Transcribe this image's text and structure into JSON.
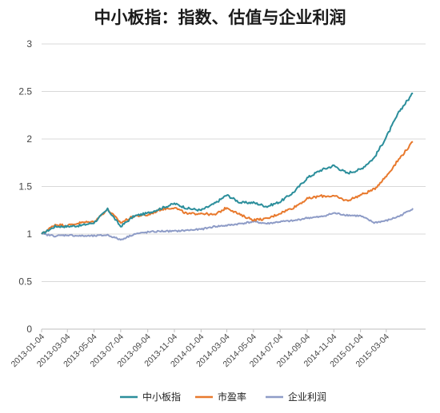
{
  "chart_data": {
    "type": "line",
    "title": "中小板指：指数、估值与企业利润",
    "xlabel": "",
    "ylabel": "",
    "ylim": [
      0,
      3
    ],
    "yticks": [
      "0",
      "0.5",
      "1",
      "1.5",
      "2",
      "2.5",
      "3"
    ],
    "xticks": [
      "2013-01-04",
      "2013-03-04",
      "2013-05-04",
      "2013-07-04",
      "2013-09-04",
      "2013-11-04",
      "2014-01-04",
      "2014-03-04",
      "2014-05-04",
      "2014-07-04",
      "2014-09-04",
      "2014-11-04",
      "2015-01-04",
      "2015-03-04"
    ],
    "grid": true,
    "legend": "bottom",
    "x": [
      "2013-01-04",
      "2013-02-04",
      "2013-03-04",
      "2013-04-04",
      "2013-05-04",
      "2013-06-04",
      "2013-07-04",
      "2013-08-04",
      "2013-09-04",
      "2013-10-04",
      "2013-11-04",
      "2013-12-04",
      "2014-01-04",
      "2014-02-04",
      "2014-03-04",
      "2014-04-04",
      "2014-05-04",
      "2014-06-04",
      "2014-07-04",
      "2014-08-04",
      "2014-09-04",
      "2014-10-04",
      "2014-11-04",
      "2014-12-04",
      "2015-01-04",
      "2015-02-04",
      "2015-03-04",
      "2015-04-04",
      "2015-05-04"
    ],
    "series": [
      {
        "name": "中小板指",
        "color": "#2b8e9b",
        "values": [
          1.0,
          1.08,
          1.08,
          1.09,
          1.12,
          1.26,
          1.08,
          1.19,
          1.22,
          1.27,
          1.32,
          1.27,
          1.25,
          1.32,
          1.41,
          1.33,
          1.33,
          1.29,
          1.34,
          1.44,
          1.59,
          1.67,
          1.72,
          1.64,
          1.68,
          1.8,
          2.02,
          2.3,
          2.48
        ]
      },
      {
        "name": "市盈率",
        "color": "#e8792d",
        "values": [
          1.0,
          1.1,
          1.09,
          1.12,
          1.13,
          1.26,
          1.12,
          1.19,
          1.2,
          1.26,
          1.28,
          1.21,
          1.22,
          1.2,
          1.28,
          1.2,
          1.15,
          1.16,
          1.22,
          1.28,
          1.37,
          1.4,
          1.4,
          1.35,
          1.41,
          1.47,
          1.61,
          1.8,
          1.97
        ]
      },
      {
        "name": "企业利润",
        "color": "#8e9cc7",
        "values": [
          1.0,
          0.98,
          0.99,
          0.98,
          0.98,
          0.99,
          0.94,
          1.0,
          1.02,
          1.03,
          1.03,
          1.04,
          1.05,
          1.08,
          1.09,
          1.11,
          1.13,
          1.11,
          1.13,
          1.14,
          1.17,
          1.18,
          1.22,
          1.2,
          1.19,
          1.12,
          1.14,
          1.19,
          1.27
        ]
      }
    ]
  }
}
